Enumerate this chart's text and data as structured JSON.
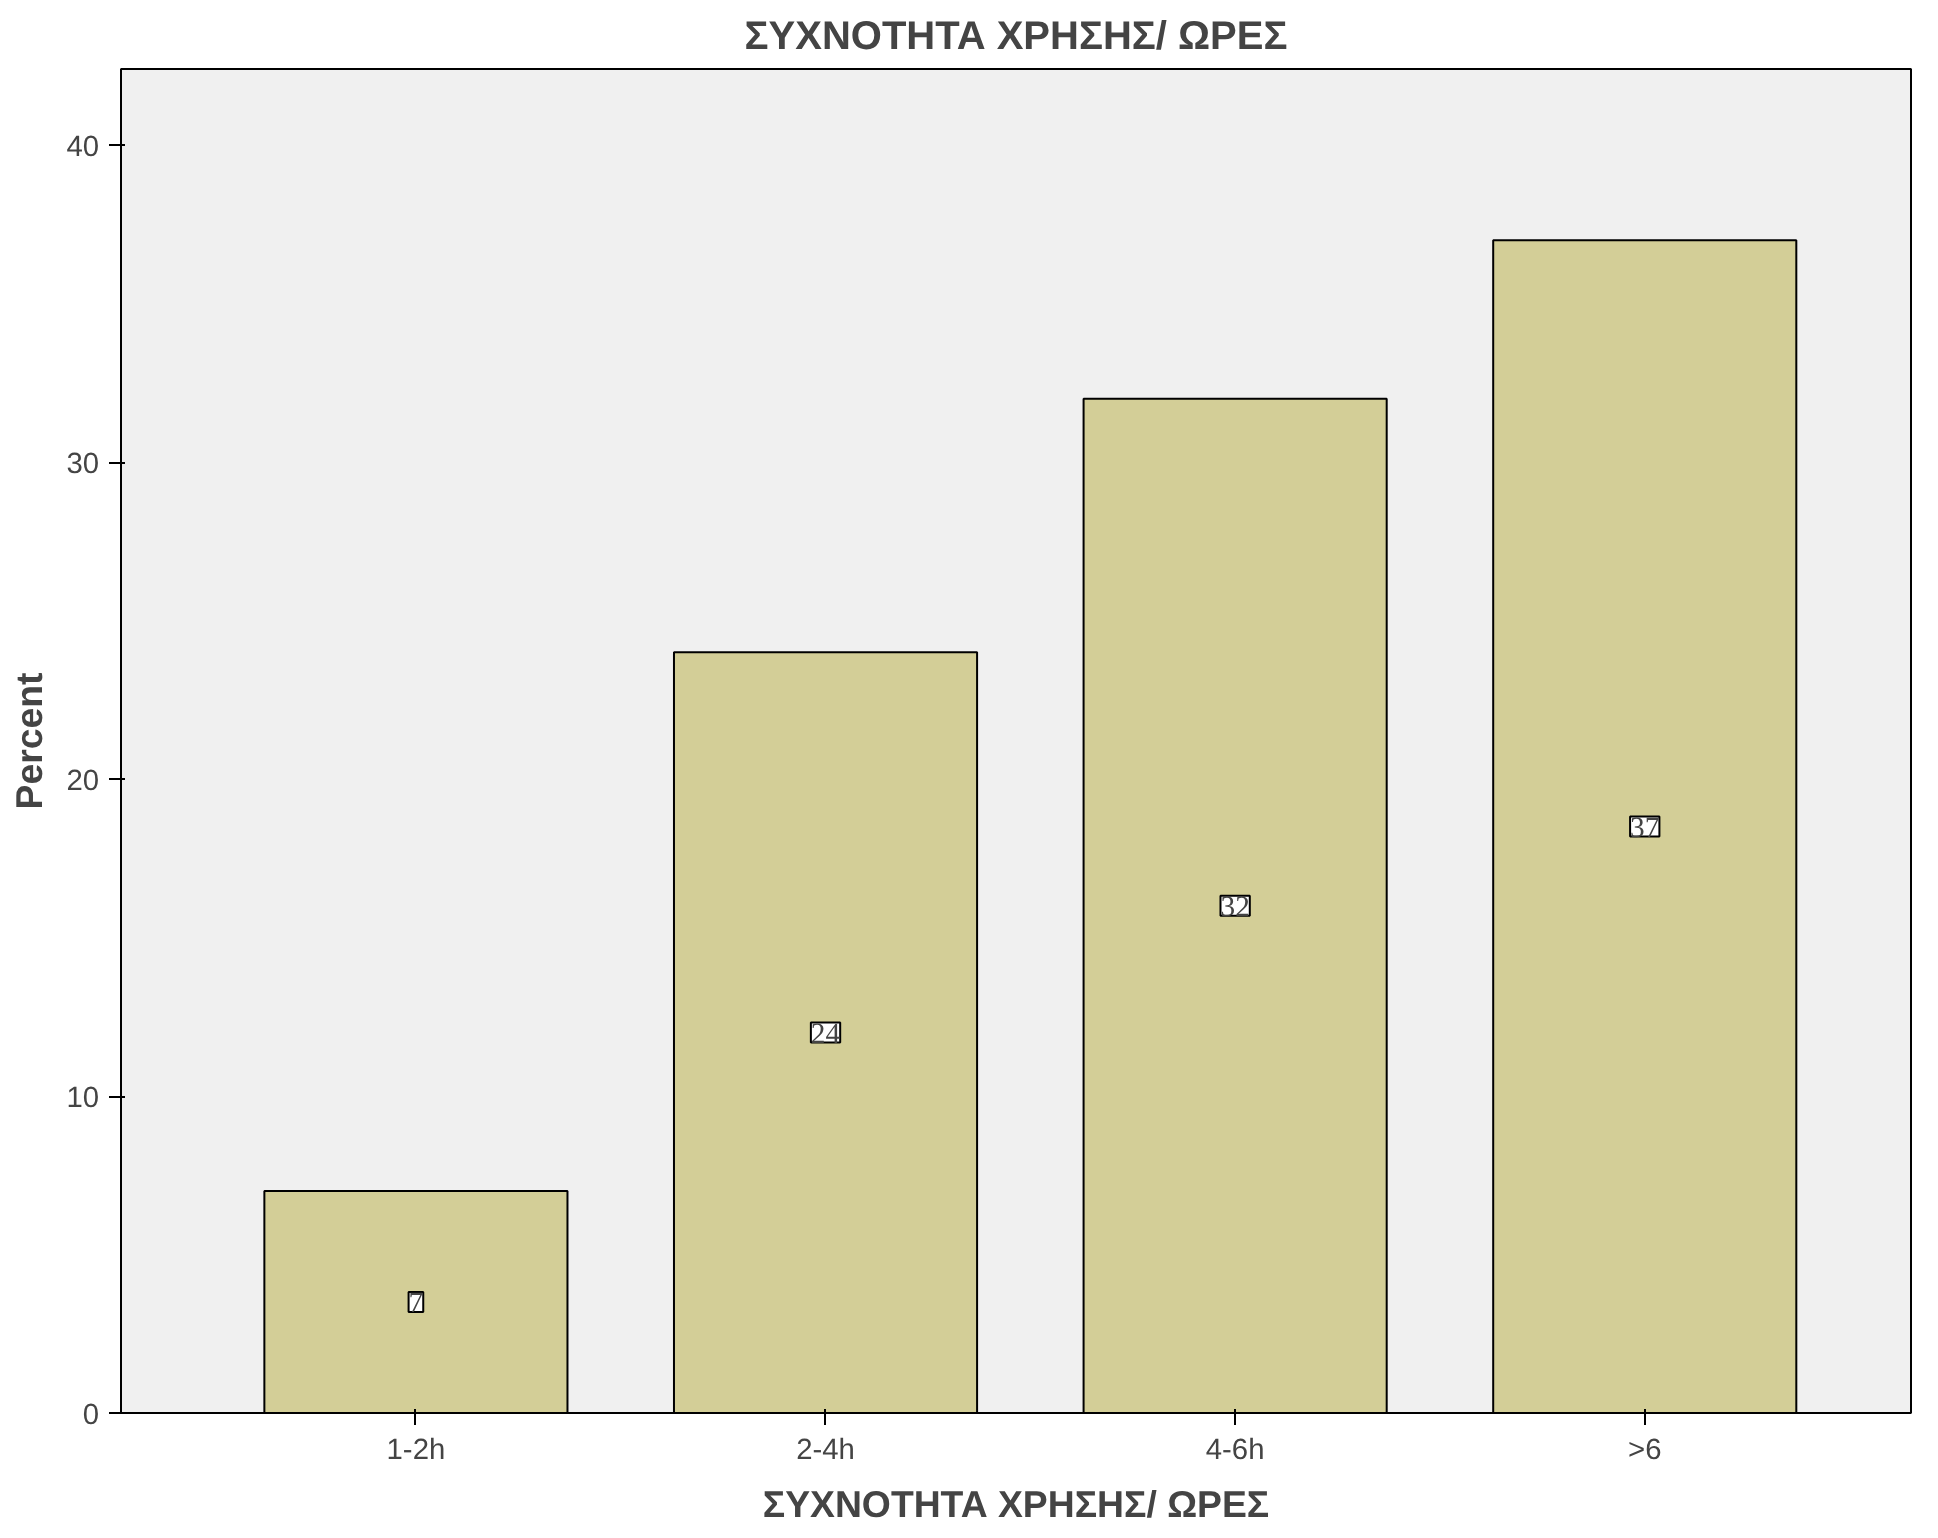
{
  "chart_data": {
    "type": "bar",
    "title": "ΣΥΧΝΟΤΗΤΑ ΧΡΗΣΗΣ/ ΩΡΕΣ",
    "xlabel": "ΣΥΧΝΟΤΗΤΑ ΧΡΗΣΗΣ/ ΩΡΕΣ",
    "ylabel": "Percent",
    "categories": [
      "1-2h",
      "2-4h",
      "4-6h",
      ">6"
    ],
    "values": [
      7,
      24,
      32,
      37
    ],
    "color": "#d3ce97",
    "ylim": [
      0,
      42.4
    ],
    "yticks": [
      0,
      10,
      20,
      30,
      40
    ],
    "grid": false,
    "data_labels": true
  }
}
